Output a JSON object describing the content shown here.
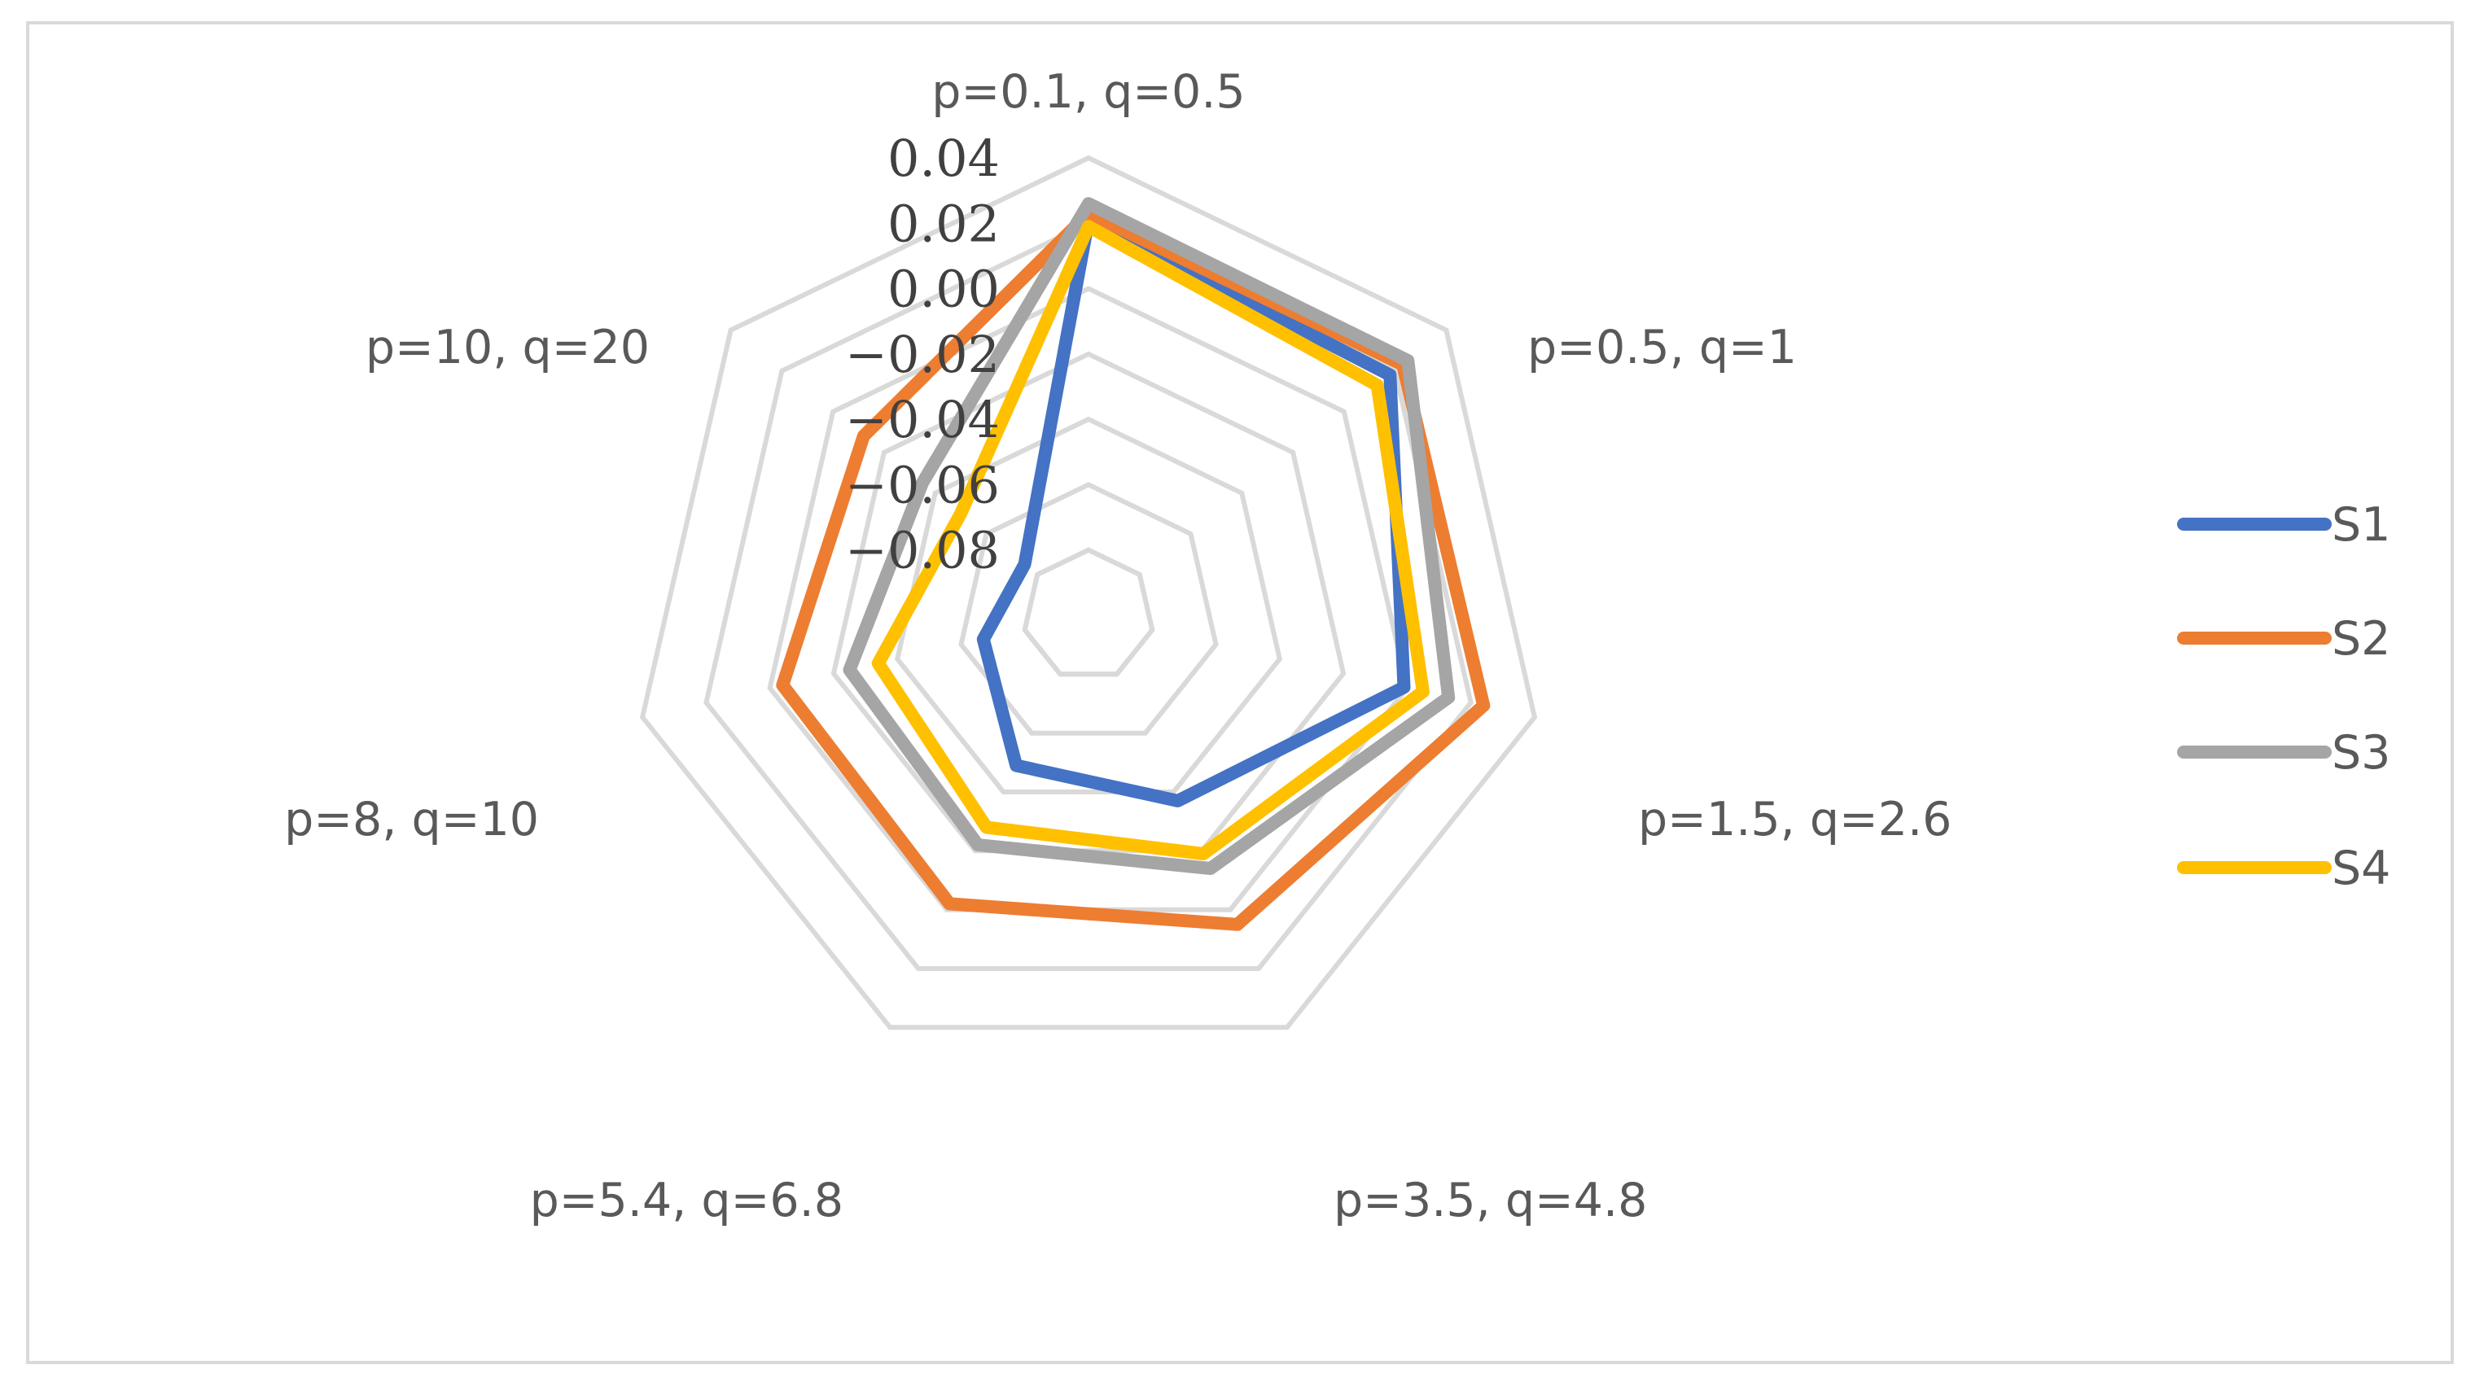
{
  "chart_data": {
    "type": "radar",
    "title": "",
    "categories": [
      "p=0.1, q=0.5",
      "p=0.5, q=1",
      "p=1.5, q=2.6",
      "p=3.5, q=4.8",
      "p=5.4, q=6.8",
      "p=8, q=10",
      "p=10, q=20"
    ],
    "rlim": [
      -0.1,
      0.04
    ],
    "ticks": [
      0.04,
      0.02,
      0.0,
      -0.02,
      -0.04,
      -0.06,
      -0.08
    ],
    "tick_labels": [
      "0.04",
      "0.02",
      "0.00",
      "−0.02",
      "−0.04",
      "−0.06",
      "−0.08"
    ],
    "grid": true,
    "legend_position": "right",
    "series": [
      {
        "name": "S1",
        "color": "#4472C4",
        "values": [
          0.021,
          0.018,
          -0.001,
          -0.037,
          -0.049,
          -0.067,
          -0.075
        ]
      },
      {
        "name": "S2",
        "color": "#ED7D31",
        "values": [
          0.023,
          0.023,
          0.024,
          0.005,
          -0.002,
          -0.004,
          -0.012
        ]
      },
      {
        "name": "S3",
        "color": "#A5A5A5",
        "values": [
          0.026,
          0.025,
          0.013,
          -0.014,
          -0.022,
          -0.025,
          -0.035
        ]
      },
      {
        "name": "S4",
        "color": "#FFC000",
        "values": [
          0.019,
          0.013,
          0.005,
          -0.019,
          -0.028,
          -0.034,
          -0.05
        ]
      }
    ]
  }
}
